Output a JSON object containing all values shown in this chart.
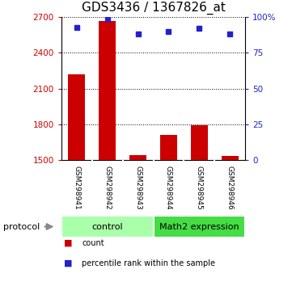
{
  "title": "GDS3436 / 1367826_at",
  "samples": [
    "GSM298941",
    "GSM298942",
    "GSM298943",
    "GSM298944",
    "GSM298945",
    "GSM298946"
  ],
  "counts": [
    2220,
    2670,
    1545,
    1715,
    1790,
    1535
  ],
  "percentile_ranks": [
    93,
    99,
    88,
    90,
    92,
    88
  ],
  "ylim_left": [
    1500,
    2700
  ],
  "ylim_right": [
    0,
    100
  ],
  "yticks_left": [
    1500,
    1800,
    2100,
    2400,
    2700
  ],
  "yticks_right": [
    0,
    25,
    50,
    75,
    100
  ],
  "ytick_labels_right": [
    "0",
    "25",
    "50",
    "75",
    "100%"
  ],
  "bar_color": "#cc0000",
  "dot_color": "#2222cc",
  "groups": [
    {
      "label": "control",
      "start": 0,
      "end": 3,
      "color": "#aaffaa"
    },
    {
      "label": "Math2 expression",
      "start": 3,
      "end": 6,
      "color": "#44dd44"
    }
  ],
  "protocol_label": "protocol",
  "legend_items": [
    {
      "color": "#cc0000",
      "label": "count"
    },
    {
      "color": "#2222cc",
      "label": "percentile rank within the sample"
    }
  ],
  "background_color": "#ffffff",
  "title_fontsize": 11,
  "axis_color_left": "#cc0000",
  "axis_color_right": "#2222cc",
  "sample_bg": "#cccccc",
  "sample_divider": "#ffffff"
}
